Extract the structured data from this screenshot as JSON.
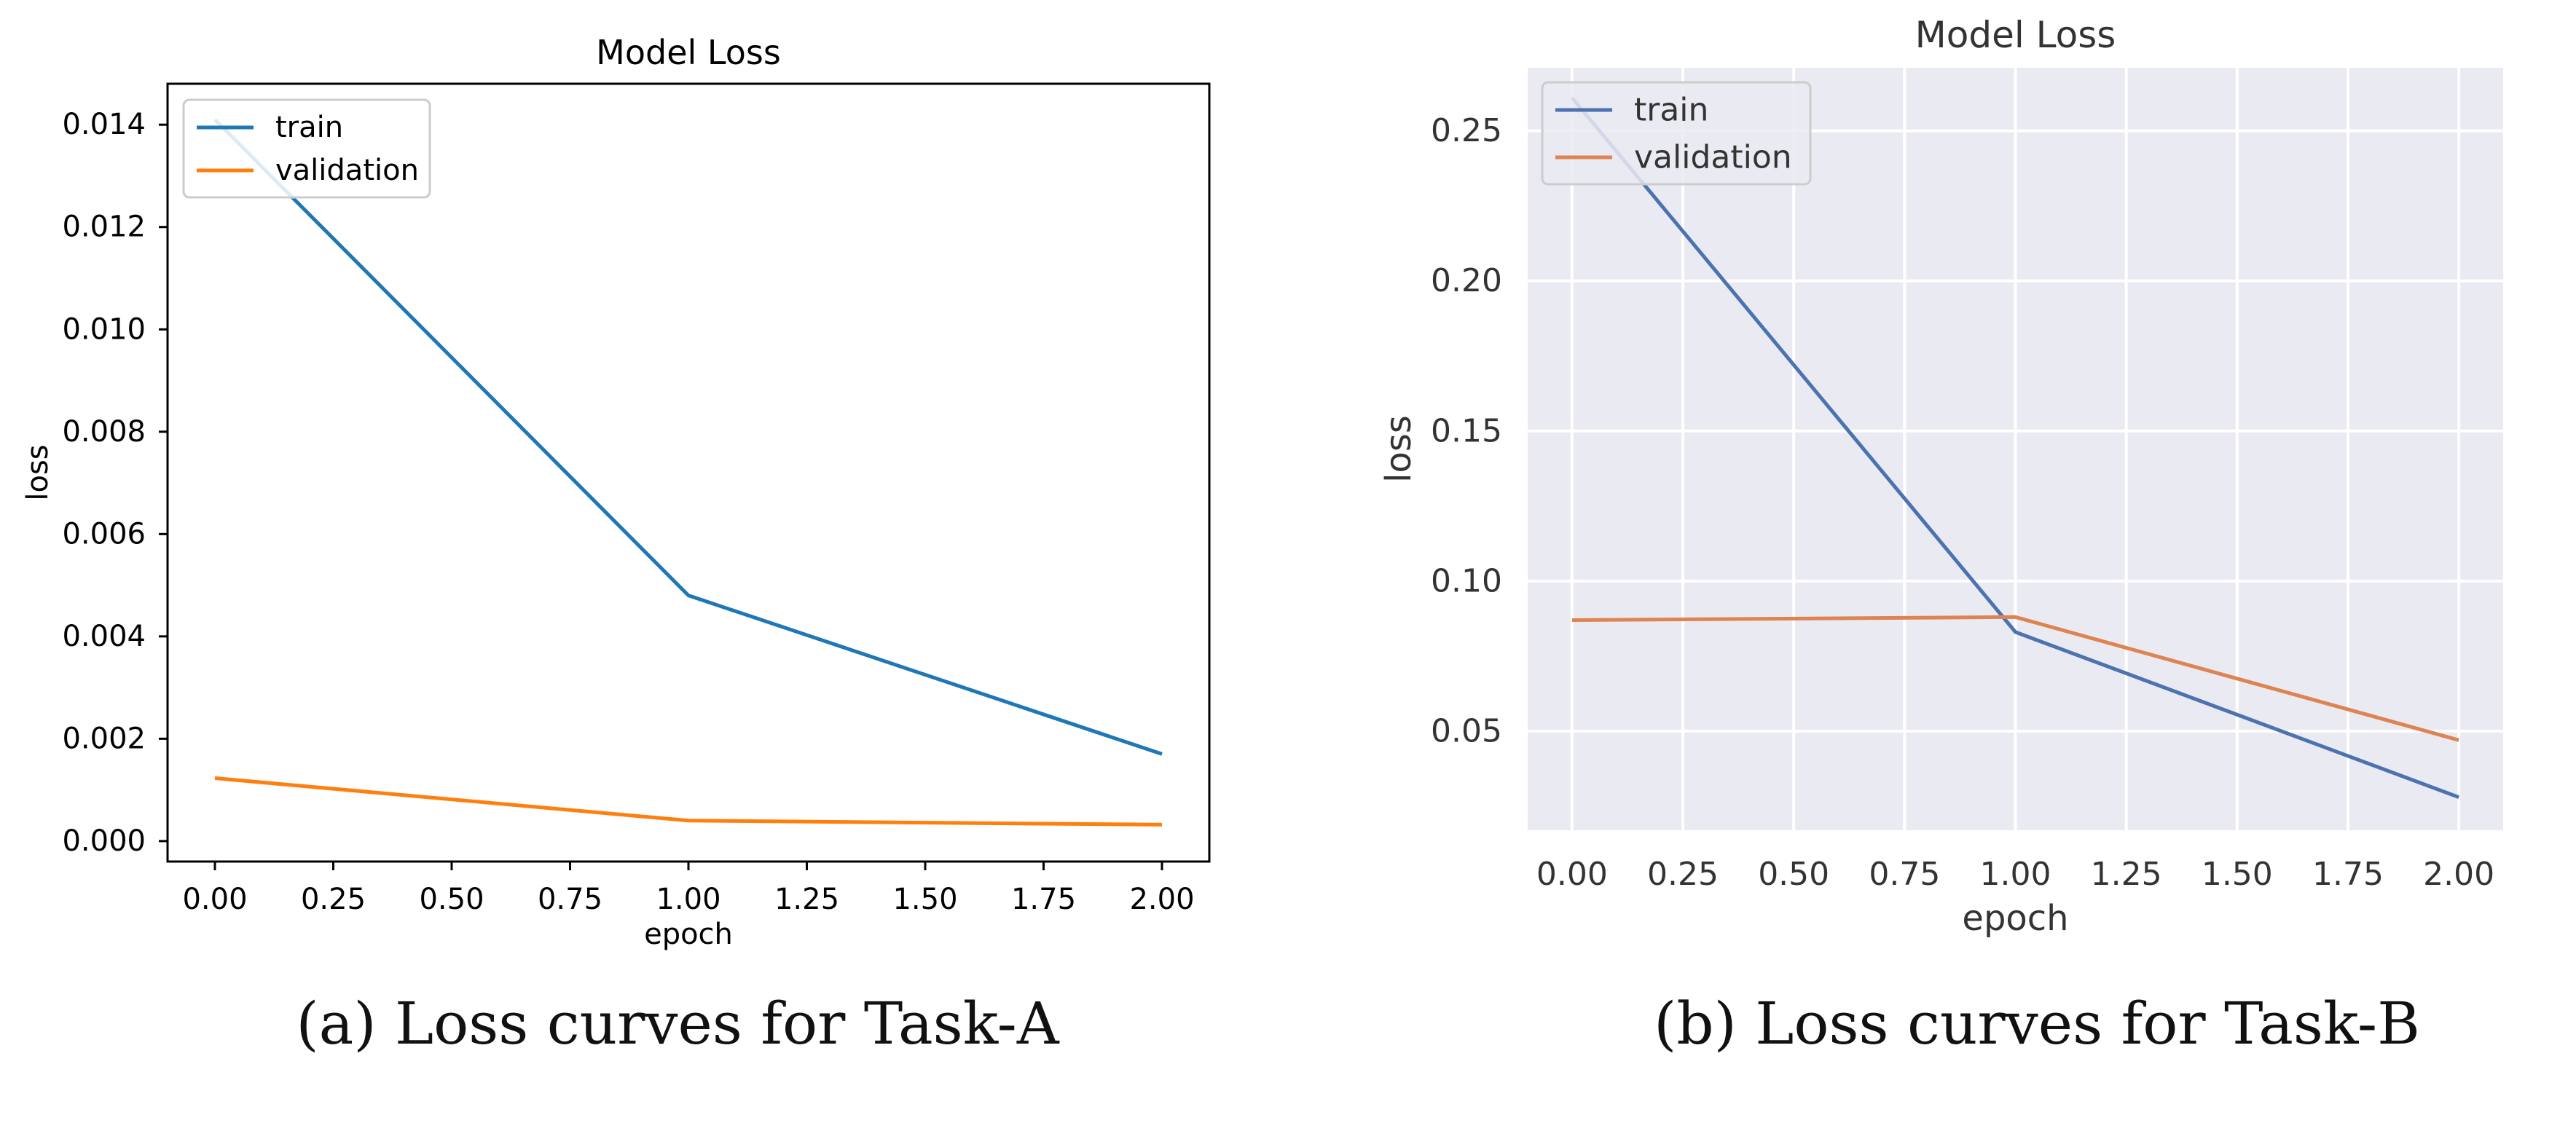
{
  "chart_data": [
    {
      "type": "line",
      "title": "Model Loss",
      "xlabel": "epoch",
      "ylabel": "loss",
      "xlim": [
        -0.1,
        2.1
      ],
      "ylim": [
        -0.0004,
        0.0148
      ],
      "xticks": [
        0.0,
        0.25,
        0.5,
        0.75,
        1.0,
        1.25,
        1.5,
        1.75,
        2.0
      ],
      "xtick_labels": [
        "0.00",
        "0.25",
        "0.50",
        "0.75",
        "1.00",
        "1.25",
        "1.50",
        "1.75",
        "2.00"
      ],
      "yticks": [
        0.0,
        0.002,
        0.004,
        0.006,
        0.008,
        0.01,
        0.012,
        0.014
      ],
      "ytick_labels": [
        "0.000",
        "0.002",
        "0.004",
        "0.006",
        "0.008",
        "0.010",
        "0.012",
        "0.014"
      ],
      "grid": false,
      "style": "classic",
      "legend": "upper left",
      "series": [
        {
          "name": "train",
          "color": "#1f77b4",
          "x": [
            0,
            1,
            2
          ],
          "y": [
            0.0141,
            0.0048,
            0.0017
          ]
        },
        {
          "name": "validation",
          "color": "#ff7f0e",
          "x": [
            0,
            1,
            2
          ],
          "y": [
            0.00123,
            0.0004,
            0.00032
          ]
        }
      ],
      "caption": "(a) Loss curves for Task-A"
    },
    {
      "type": "line",
      "title": "Model Loss",
      "xlabel": "epoch",
      "ylabel": "loss",
      "xlim": [
        -0.1,
        2.1
      ],
      "ylim": [
        0.017,
        0.271
      ],
      "xticks": [
        0.0,
        0.25,
        0.5,
        0.75,
        1.0,
        1.25,
        1.5,
        1.75,
        2.0
      ],
      "xtick_labels": [
        "0.00",
        "0.25",
        "0.50",
        "0.75",
        "1.00",
        "1.25",
        "1.50",
        "1.75",
        "2.00"
      ],
      "yticks": [
        0.05,
        0.1,
        0.15,
        0.2,
        0.25
      ],
      "ytick_labels": [
        "0.05",
        "0.10",
        "0.15",
        "0.20",
        "0.25"
      ],
      "grid": true,
      "style": "seaborn",
      "legend": "upper left",
      "series": [
        {
          "name": "train",
          "color": "#4c72b0",
          "x": [
            0,
            1,
            2
          ],
          "y": [
            0.261,
            0.083,
            0.028
          ]
        },
        {
          "name": "validation",
          "color": "#dd8452",
          "x": [
            0,
            1,
            2
          ],
          "y": [
            0.087,
            0.088,
            0.047
          ]
        }
      ],
      "caption": "(b) Loss curves for Task-B"
    }
  ]
}
